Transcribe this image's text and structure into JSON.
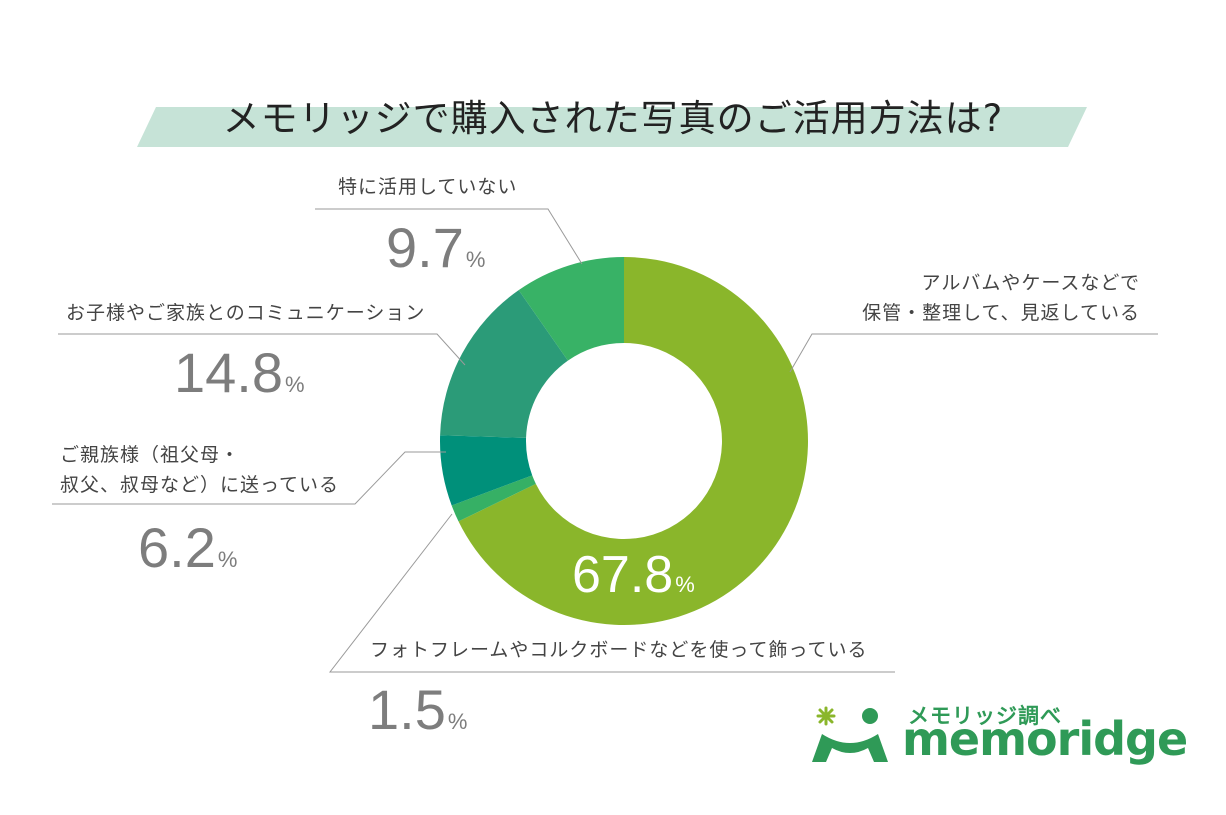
{
  "title": "メモリッジで購入された写真のご活用方法は?",
  "chart_data": {
    "type": "pie",
    "title": "メモリッジで購入された写真のご活用方法は?",
    "unit": "%",
    "slices": [
      {
        "label_lines": [
          "アルバムやケースなどで",
          "保管・整理して、見返している"
        ],
        "value": 67.8,
        "value_text": "67.8",
        "color": "#8ab62b"
      },
      {
        "label_lines": [
          "フォトフレームやコルクボードなどを使って飾っている"
        ],
        "value": 1.5,
        "value_text": "1.5",
        "color": "#36b065"
      },
      {
        "label_lines": [
          "ご親族様（祖父母・",
          "叔父、叔母など）に送っている"
        ],
        "value": 6.2,
        "value_text": "6.2",
        "color": "#00907a"
      },
      {
        "label_lines": [
          "お子様やご家族とのコミュニケーション"
        ],
        "value": 14.8,
        "value_text": "14.8",
        "color": "#2b9b78"
      },
      {
        "label_lines": [
          "特に活用していない"
        ],
        "value": 9.7,
        "value_text": "9.7",
        "color": "#38b266"
      }
    ]
  },
  "logo": {
    "jp": "メモリッジ調べ",
    "en": "memoridge",
    "color": "#2f9a57",
    "accent": "#8ab62b"
  }
}
